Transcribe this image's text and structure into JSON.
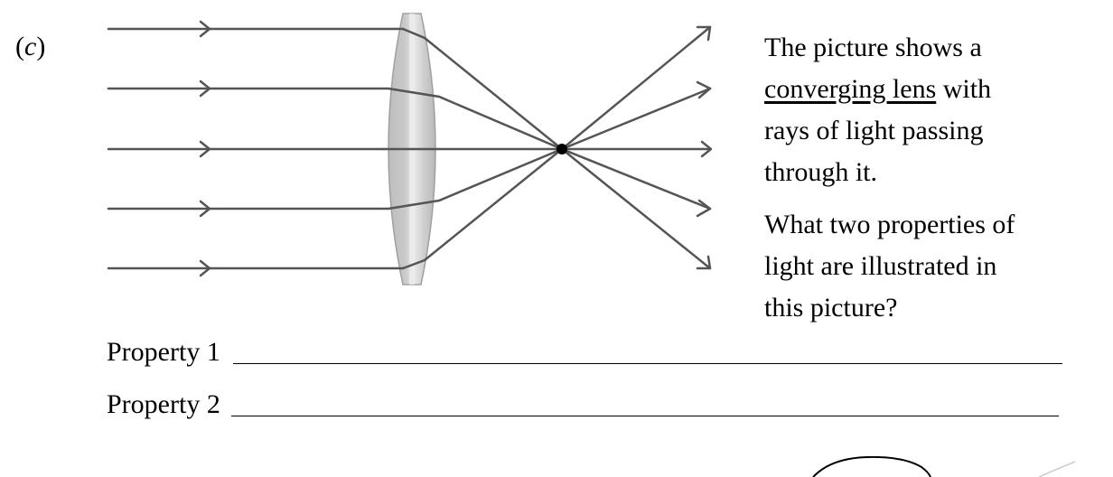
{
  "part": {
    "open": "(",
    "letter": "c",
    "close": ")"
  },
  "diagram": {
    "lens_type": "converging lens",
    "ray_count": 5,
    "colors": {
      "ray": "#555555",
      "lens_fill": "#c9c9c9",
      "lens_highlight": "#e6e6e6",
      "focal_point": "#000000"
    }
  },
  "question": {
    "line1": "The picture shows a",
    "underlined": "converging lens",
    "line2_rest": " with",
    "line3": "rays of light passing",
    "line4": "through it.",
    "line5": "What two properties of",
    "line6": "light are illustrated in",
    "line7": "this picture?"
  },
  "answers": {
    "property1_label": "Property 1",
    "property2_label": "Property 2"
  }
}
